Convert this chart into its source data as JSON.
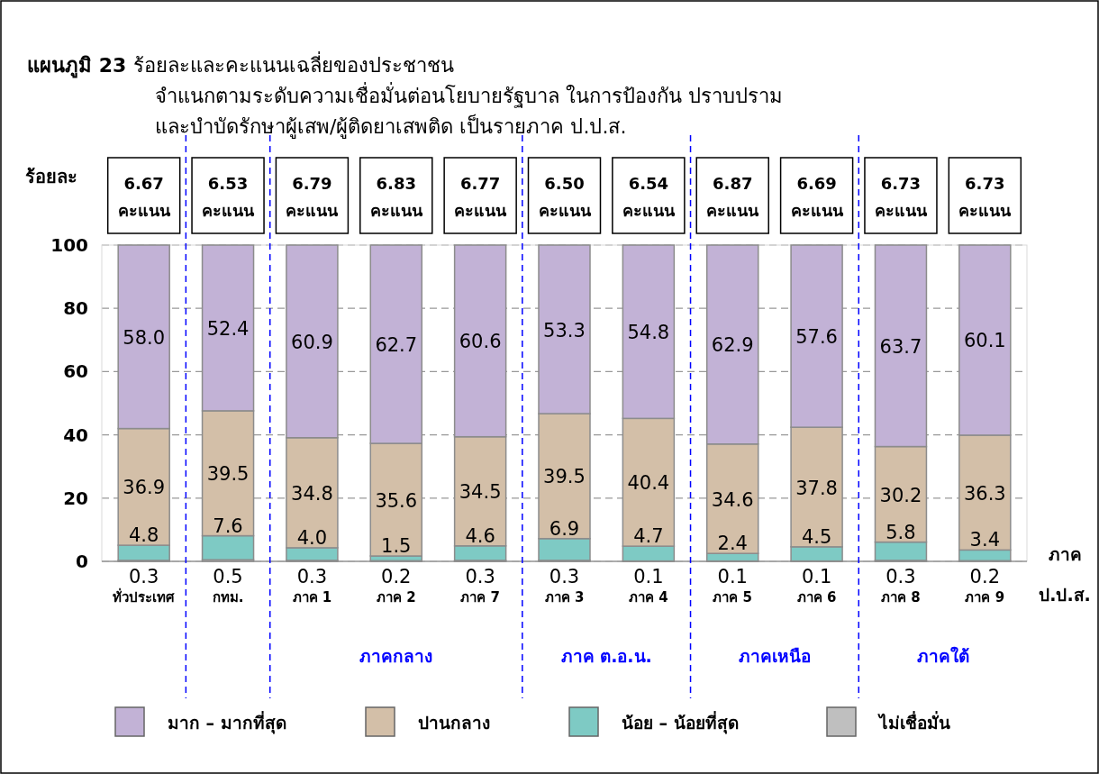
{
  "chart_data": {
    "type": "bar",
    "stacked": true,
    "title": "แผนภูมิ 23  ร้อยละและคะแนนเฉลี่ยของประชาชน  จำแนกตามระดับความเชื่อมั่นต่อนโยบายรัฐบาล ในการป้องกัน ปราบปราม และบำบัดรักษาผู้เสพ/ผู้ติดยาเสพติด  เป็นรายภาค ป.ป.ส.",
    "ylabel": "ร้อยละ",
    "xlabel": "ภาค ป.ป.ส.",
    "categories": [
      "ทั่วประเทศ",
      "กทม.",
      "ภาค 1",
      "ภาค 2",
      "ภาค 7",
      "ภาค 3",
      "ภาค 4",
      "ภาค 5",
      "ภาค 6",
      "ภาค 8",
      "ภาค 9"
    ],
    "series": [
      {
        "name": "ไม่เชื่อมั่น",
        "color": "#bfbfbf",
        "values": [
          0.3,
          0.5,
          0.3,
          0.2,
          0.3,
          0.3,
          0.1,
          0.1,
          0.1,
          0.3,
          0.2
        ],
        "value_labels": [
          "0.3",
          "0.5",
          "0.3",
          "0.2",
          "0.3",
          "0.3",
          "0.1",
          "0.1",
          "0.1",
          "0.3",
          "0.2"
        ]
      },
      {
        "name": "น้อย – น้อยที่สุด",
        "color": "#7ecac4",
        "values": [
          4.8,
          7.6,
          4.0,
          1.5,
          4.6,
          6.9,
          4.7,
          2.4,
          4.5,
          5.8,
          3.4
        ],
        "value_labels": [
          "4.8",
          "7.6",
          "4.0",
          "1.5",
          "4.6",
          "6.9",
          "4.7",
          "2.4",
          "4.5",
          "5.8",
          "3.4"
        ]
      },
      {
        "name": "ปานกลาง",
        "color": "#d3bfa8",
        "values": [
          36.9,
          39.5,
          34.8,
          35.6,
          34.5,
          39.5,
          40.4,
          34.6,
          37.8,
          30.2,
          36.3
        ],
        "value_labels": [
          "36.9",
          "39.5",
          "34.8",
          "35.6",
          "34.5",
          "39.5",
          "40.4",
          "34.6",
          "37.8",
          "30.2",
          "36.3"
        ]
      },
      {
        "name": "มาก – มากที่สุด",
        "color": "#c2b2d6",
        "values": [
          58.0,
          52.4,
          60.9,
          62.7,
          60.6,
          53.3,
          54.8,
          62.9,
          57.6,
          63.7,
          60.1
        ],
        "value_labels": [
          "58.0",
          "52.4",
          "60.9",
          "62.7",
          "60.6",
          "53.3",
          "54.8",
          "62.9",
          "57.6",
          "63.7",
          "60.1"
        ]
      }
    ],
    "ylim": [
      0,
      100
    ],
    "yticks": [
      0,
      20,
      40,
      60,
      80,
      100
    ],
    "grid": "y",
    "legend": "bottom",
    "annotations": [
      "6.67 คะแนน",
      "6.53 คะแนน",
      "6.79 คะแนน",
      "6.83 คะแนน",
      "6.77 คะแนน",
      "6.50 คะแนน",
      "6.54 คะแนน",
      "6.87 คะแนน",
      "6.69 คะแนน",
      "6.73 คะแนน",
      "6.73 คะแนน",
      "ภาคกลาง",
      "ภาค ต.อ.น.",
      "ภาคเหนือ",
      "ภาคใต้"
    ]
  }
}
